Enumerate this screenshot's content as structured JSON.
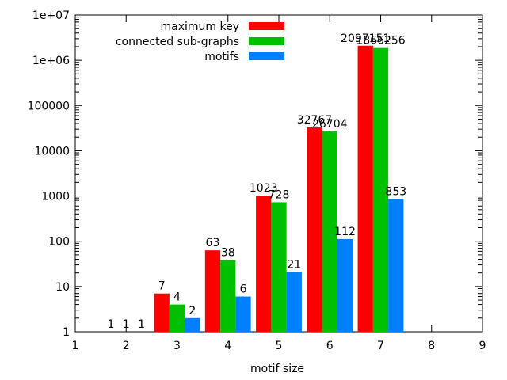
{
  "chart_data": {
    "type": "bar",
    "title": "",
    "xlabel": "motif size",
    "ylabel": "",
    "x": [
      2,
      3,
      4,
      5,
      6,
      7
    ],
    "xlim": [
      1,
      9
    ],
    "xticks": [
      "1",
      "2",
      "3",
      "4",
      "5",
      "6",
      "7",
      "8",
      "9"
    ],
    "yscale": "log",
    "ylim": [
      1,
      10000000
    ],
    "yticks": [
      "1",
      "10",
      "100",
      "1000",
      "10000",
      "100000",
      "1e+06",
      "1e+07"
    ],
    "grid": false,
    "legend_position": "top",
    "series": [
      {
        "name": "maximum key",
        "color": "#ff0000",
        "values": [
          1,
          7,
          63,
          1023,
          32767,
          2097151
        ]
      },
      {
        "name": "connected sub-graphs",
        "color": "#00c000",
        "values": [
          1,
          4,
          38,
          728,
          26704,
          1866256
        ]
      },
      {
        "name": "motifs",
        "color": "#0080ff",
        "values": [
          1,
          2,
          6,
          21,
          112,
          853
        ]
      }
    ]
  }
}
